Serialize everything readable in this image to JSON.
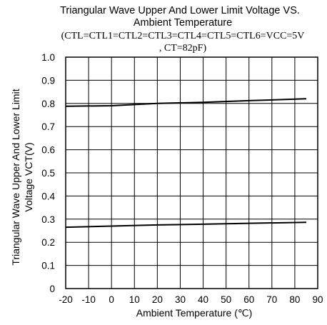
{
  "chart_data": {
    "type": "line",
    "title_lines": [
      "Triangular Wave Upper And Lower Limit Voltage VS.",
      "Ambient Temperature",
      "(CTL=CTL1=CTL2=CTL3=CTL4=CTL5=CTL6=VCC=5V",
      ", CT=82pF)"
    ],
    "xlabel": "Ambient Temperature (℃)",
    "ylabel_lines": [
      "Triangular Wave Upper And Lower Limit",
      "Voltage VCT(V)"
    ],
    "xlim": [
      -20,
      90
    ],
    "ylim": [
      0,
      1.0
    ],
    "x_ticks": [
      -20,
      -10,
      0,
      10,
      20,
      30,
      40,
      50,
      60,
      70,
      80,
      90
    ],
    "x_tick_labels": [
      "-20",
      "-10",
      "0",
      "10",
      "20",
      "30",
      "40",
      "50",
      "60",
      "70",
      "80",
      "90"
    ],
    "y_ticks": [
      0,
      0.1,
      0.2,
      0.3,
      0.4,
      0.5,
      0.6,
      0.7,
      0.8,
      0.9,
      1.0
    ],
    "y_tick_labels": [
      "0",
      "0.1",
      "0.2",
      "0.3",
      "0.4",
      "0.5",
      "0.6",
      "0.7",
      "0.8",
      "0.9",
      "1.0"
    ],
    "grid": true,
    "series": [
      {
        "x": [
          -20,
          0,
          20,
          40,
          60,
          85
        ],
        "y": [
          0.788,
          0.79,
          0.8,
          0.805,
          0.812,
          0.82
        ]
      },
      {
        "x": [
          -20,
          0,
          20,
          40,
          60,
          85
        ],
        "y": [
          0.265,
          0.27,
          0.275,
          0.278,
          0.282,
          0.286
        ]
      }
    ]
  }
}
